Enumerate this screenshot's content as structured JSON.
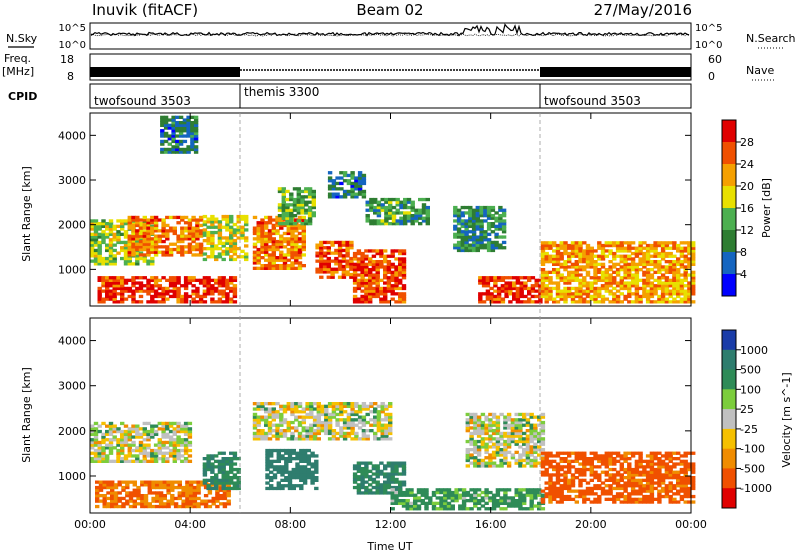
{
  "header": {
    "title_left": "Inuvik (fitACF)",
    "title_center": "Beam 02",
    "title_right": "27/May/2016"
  },
  "noise_panel": {
    "left_label": "N.Sky",
    "left_ticks": [
      "10^5",
      "10^0"
    ],
    "right_label": "N.Search",
    "right_ticks": [
      "10^5",
      "10^0"
    ]
  },
  "freq_panel": {
    "left_label_line1": "Freq.",
    "left_label_line2": "[MHz]",
    "left_ticks": [
      "18",
      "8"
    ],
    "right_label": "Nave",
    "right_ticks": [
      "60",
      "0"
    ]
  },
  "cpid_panel": {
    "label": "CPID",
    "segments": [
      {
        "name": "twofsound 3503",
        "start_h": 0,
        "end_h": 6
      },
      {
        "name": "themis 3300",
        "start_h": 6,
        "end_h": 18
      },
      {
        "name": "twofsound 3503",
        "start_h": 18,
        "end_h": 24
      }
    ]
  },
  "power_colorbar": {
    "label": "Power [dB]",
    "ticks": [
      "28",
      "24",
      "20",
      "16",
      "12",
      "8",
      "4"
    ],
    "colors": [
      "#e00000",
      "#f05000",
      "#f5a000",
      "#e8e000",
      "#4caf50",
      "#2e7d32",
      "#1565c0",
      "#0000ff"
    ]
  },
  "velocity_colorbar": {
    "label": "Velocity [m s^-1]",
    "ticks": [
      "1000",
      "500",
      "100",
      "25",
      "-25",
      "-100",
      "-500",
      "-1000"
    ],
    "colors": [
      "#1a3ca8",
      "#2e7d6e",
      "#2e8b57",
      "#7ccd3c",
      "#c0c0c0",
      "#f5c000",
      "#f08c00",
      "#f05000",
      "#e00000"
    ]
  },
  "axes": {
    "ylabel": "Slant Range [km]",
    "xlabel": "Time UT",
    "xticks": [
      "00:00",
      "04:00",
      "08:00",
      "12:00",
      "16:00",
      "20:00",
      "00:00"
    ],
    "yticks": [
      "1000",
      "2000",
      "3000",
      "4000"
    ]
  },
  "chart_data": [
    {
      "type": "heatmap",
      "title": "",
      "colorbar_label": "Power [dB]",
      "xlabel": "",
      "ylabel": "Slant Range [km]",
      "xlim_hours": [
        0,
        24
      ],
      "ylim_km": [
        180,
        4500
      ],
      "value_range_db": [
        0,
        30
      ],
      "regions": [
        {
          "t0": 0.0,
          "t1": 2.5,
          "r0": 1100,
          "r1": 2100,
          "level_db": 14
        },
        {
          "t0": 0.3,
          "t1": 5.8,
          "r0": 250,
          "r1": 800,
          "level_db": 26
        },
        {
          "t0": 1.5,
          "t1": 4.5,
          "r0": 1300,
          "r1": 2200,
          "level_db": 22
        },
        {
          "t0": 2.8,
          "t1": 4.3,
          "r0": 3600,
          "r1": 4400,
          "level_db": 6
        },
        {
          "t0": 4.5,
          "t1": 6.2,
          "r0": 1200,
          "r1": 2200,
          "level_db": 16
        },
        {
          "t0": 6.5,
          "t1": 8.5,
          "r0": 1000,
          "r1": 2200,
          "level_db": 22
        },
        {
          "t0": 7.5,
          "t1": 9.0,
          "r0": 2000,
          "r1": 2800,
          "level_db": 12
        },
        {
          "t0": 9.0,
          "t1": 10.5,
          "r0": 800,
          "r1": 1600,
          "level_db": 24
        },
        {
          "t0": 9.5,
          "t1": 11.0,
          "r0": 2600,
          "r1": 3200,
          "level_db": 6
        },
        {
          "t0": 10.5,
          "t1": 12.5,
          "r0": 250,
          "r1": 1400,
          "level_db": 25
        },
        {
          "t0": 11.0,
          "t1": 13.5,
          "r0": 2000,
          "r1": 2600,
          "level_db": 10
        },
        {
          "t0": 14.5,
          "t1": 16.5,
          "r0": 1400,
          "r1": 2400,
          "level_db": 8
        },
        {
          "t0": 15.5,
          "t1": 18.0,
          "r0": 250,
          "r1": 800,
          "level_db": 26
        },
        {
          "t0": 18.0,
          "t1": 24.0,
          "r0": 250,
          "r1": 1600,
          "level_db": 20
        }
      ]
    },
    {
      "type": "heatmap",
      "title": "",
      "colorbar_label": "Velocity [m s^-1]",
      "xlabel": "Time UT",
      "ylabel": "Slant Range [km]",
      "xlim_hours": [
        0,
        24
      ],
      "ylim_km": [
        180,
        4500
      ],
      "value_range_ms": [
        -1000,
        1000
      ],
      "regions": [
        {
          "t0": 0.0,
          "t1": 4.0,
          "r0": 1300,
          "r1": 2200,
          "level_ms": 0
        },
        {
          "t0": 0.2,
          "t1": 5.5,
          "r0": 300,
          "r1": 900,
          "level_ms": -300
        },
        {
          "t0": 4.5,
          "t1": 6.0,
          "r0": 700,
          "r1": 1500,
          "level_ms": 300
        },
        {
          "t0": 6.5,
          "t1": 12.0,
          "r0": 1800,
          "r1": 2600,
          "level_ms": 0
        },
        {
          "t0": 7.0,
          "t1": 9.0,
          "r0": 700,
          "r1": 1600,
          "level_ms": 400
        },
        {
          "t0": 10.5,
          "t1": 12.5,
          "r0": 600,
          "r1": 1300,
          "level_ms": 300
        },
        {
          "t0": 12.0,
          "t1": 18.0,
          "r0": 250,
          "r1": 700,
          "level_ms": 100
        },
        {
          "t0": 15.0,
          "t1": 18.0,
          "r0": 1200,
          "r1": 2400,
          "level_ms": 0
        },
        {
          "t0": 18.0,
          "t1": 24.0,
          "r0": 400,
          "r1": 1500,
          "level_ms": -350
        }
      ]
    }
  ]
}
